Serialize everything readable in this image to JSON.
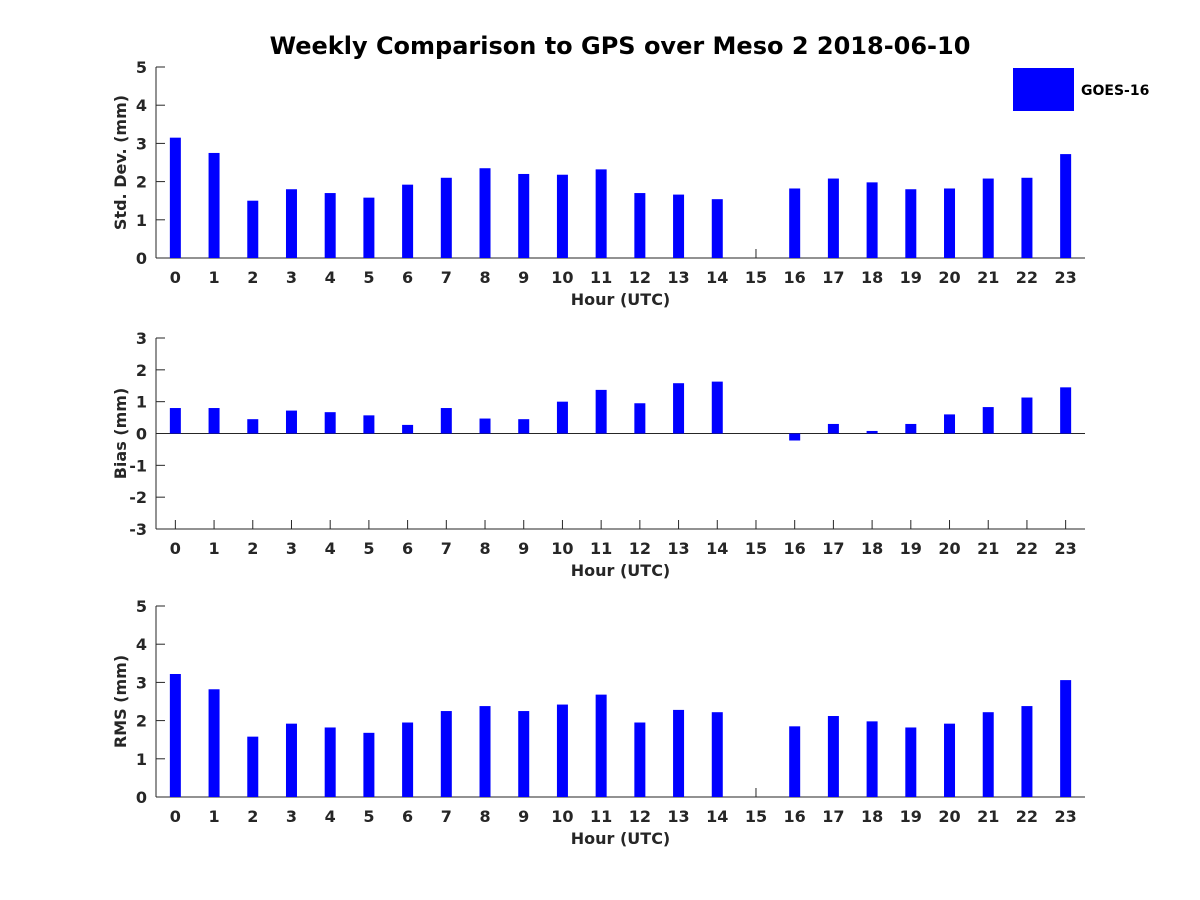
{
  "chart_data": {
    "title": "Weekly Comparison to GPS over Meso 2 2018-06-10",
    "type": "bar",
    "legend": {
      "label": "GOES-16",
      "color": "#0000ff",
      "position": "top-right"
    },
    "categories": [
      "0",
      "1",
      "2",
      "3",
      "4",
      "5",
      "6",
      "7",
      "8",
      "9",
      "10",
      "11",
      "12",
      "13",
      "14",
      "15",
      "16",
      "17",
      "18",
      "19",
      "20",
      "21",
      "22",
      "23"
    ],
    "panels": [
      {
        "id": "std",
        "type": "bar",
        "xlabel": "Hour (UTC)",
        "ylabel": "Std. Dev. (mm)",
        "ylim": [
          0,
          5
        ],
        "yticks": [
          0,
          1,
          2,
          3,
          4,
          5
        ],
        "series": [
          {
            "name": "GOES-16",
            "values": [
              3.15,
              2.75,
              1.5,
              1.8,
              1.7,
              1.58,
              1.92,
              2.1,
              2.35,
              2.2,
              2.18,
              2.32,
              1.7,
              1.66,
              1.54,
              null,
              1.82,
              2.08,
              1.98,
              1.8,
              1.82,
              2.08,
              2.1,
              2.72
            ]
          }
        ]
      },
      {
        "id": "bias",
        "type": "bar",
        "xlabel": "Hour (UTC)",
        "ylabel": "Bias (mm)",
        "ylim": [
          -3,
          3
        ],
        "yticks": [
          -3,
          -2,
          -1,
          0,
          1,
          2,
          3
        ],
        "series": [
          {
            "name": "GOES-16",
            "values": [
              0.8,
              0.8,
              0.45,
              0.72,
              0.67,
              0.57,
              0.27,
              0.8,
              0.47,
              0.45,
              1.0,
              1.37,
              0.95,
              1.58,
              1.63,
              null,
              -0.22,
              0.3,
              0.08,
              0.3,
              0.6,
              0.83,
              1.13,
              1.45
            ]
          }
        ]
      },
      {
        "id": "rms",
        "type": "bar",
        "xlabel": "Hour (UTC)",
        "ylabel": "RMS (mm)",
        "ylim": [
          0,
          5
        ],
        "yticks": [
          0,
          1,
          2,
          3,
          4,
          5
        ],
        "series": [
          {
            "name": "GOES-16",
            "values": [
              3.22,
              2.82,
              1.58,
              1.92,
              1.82,
              1.68,
              1.95,
              2.25,
              2.38,
              2.25,
              2.42,
              2.68,
              1.95,
              2.28,
              2.22,
              null,
              1.85,
              2.12,
              1.98,
              1.82,
              1.92,
              2.22,
              2.38,
              3.06
            ]
          }
        ]
      }
    ]
  }
}
